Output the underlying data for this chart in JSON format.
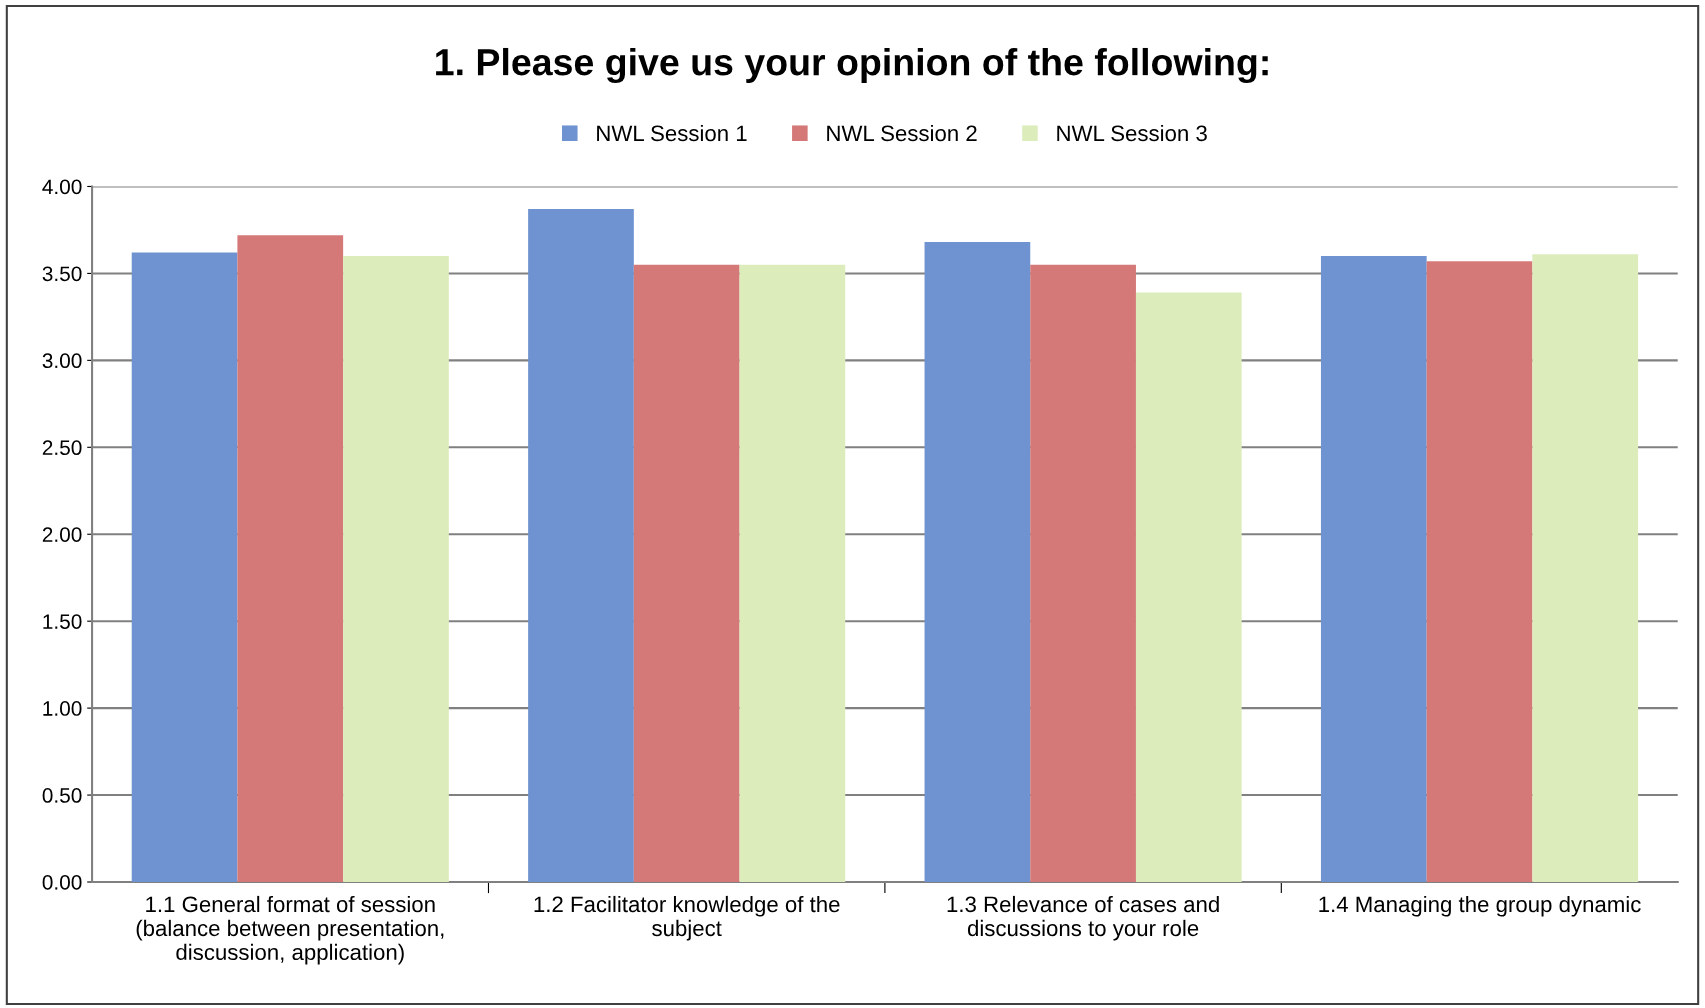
{
  "chart_data": {
    "type": "bar",
    "title": "1. Please give us your opinion of the following:",
    "categories": [
      "1.1 General format of session\n(balance between presentation,\ndiscussion, application)",
      "1.2 Facilitator knowledge of the\nsubject",
      "1.3 Relevance of cases and\ndiscussions to your role",
      "1.4 Managing the group dynamic"
    ],
    "series": [
      {
        "name": "NWL Session 1",
        "color": "#6f93d0",
        "values": [
          3.62,
          3.87,
          3.68,
          3.6
        ]
      },
      {
        "name": "NWL Session 2",
        "color": "#d47878",
        "values": [
          3.72,
          3.55,
          3.55,
          3.57
        ]
      },
      {
        "name": "NWL Session 3",
        "color": "#dcedbb",
        "values": [
          3.6,
          3.55,
          3.39,
          3.61
        ]
      }
    ],
    "ylim": [
      0,
      4
    ],
    "yticks": [
      {
        "value": 0,
        "label": "0.00"
      },
      {
        "value": 0.5,
        "label": "0.50"
      },
      {
        "value": 1,
        "label": "1.00"
      },
      {
        "value": 1.5,
        "label": "1.50"
      },
      {
        "value": 2,
        "label": "2.00"
      },
      {
        "value": 2.5,
        "label": "2.50"
      },
      {
        "value": 3,
        "label": "3.00"
      },
      {
        "value": 3.5,
        "label": "3.50"
      },
      {
        "value": 4,
        "label": "4.00"
      }
    ],
    "grid": "y",
    "legend": "top"
  }
}
